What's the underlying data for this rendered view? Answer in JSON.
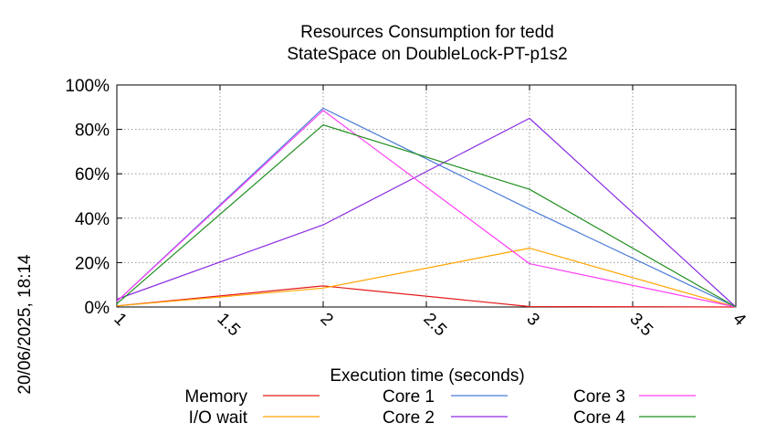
{
  "chart_data": {
    "type": "line",
    "title": "Resources Consumption for tedd",
    "subtitle": "StateSpace on DoubleLock-PT-p1s2",
    "xlabel": "Execution time (seconds)",
    "ylabel": "",
    "side_label": "20/06/2025, 18:14",
    "xlim": [
      1,
      4
    ],
    "ylim": [
      0,
      100
    ],
    "grid": true,
    "legend_position": "bottom",
    "x_ticks": [
      "1",
      "1.5",
      "2",
      "2.5",
      "3",
      "3.5",
      "4"
    ],
    "y_ticks": [
      "0%",
      "20%",
      "40%",
      "60%",
      "80%",
      "100%"
    ],
    "x": [
      1,
      2,
      3,
      4
    ],
    "series": [
      {
        "name": "Memory",
        "color": "#e41a1c",
        "values": [
          0.5,
          9.5,
          0.2,
          0
        ]
      },
      {
        "name": "I/O wait",
        "color": "#ffa500",
        "values": [
          0.5,
          8.5,
          26.5,
          0
        ]
      },
      {
        "name": "Core 1",
        "color": "#4a7cd6",
        "values": [
          2.5,
          89.5,
          44,
          0
        ]
      },
      {
        "name": "Core 2",
        "color": "#8a2be2",
        "values": [
          3.5,
          37,
          85,
          0
        ]
      },
      {
        "name": "Core 3",
        "color": "#ff3df5",
        "values": [
          2.5,
          88.5,
          19.5,
          0
        ]
      },
      {
        "name": "Core 4",
        "color": "#1f8f1f",
        "values": [
          1.5,
          82,
          53,
          0
        ]
      }
    ]
  }
}
